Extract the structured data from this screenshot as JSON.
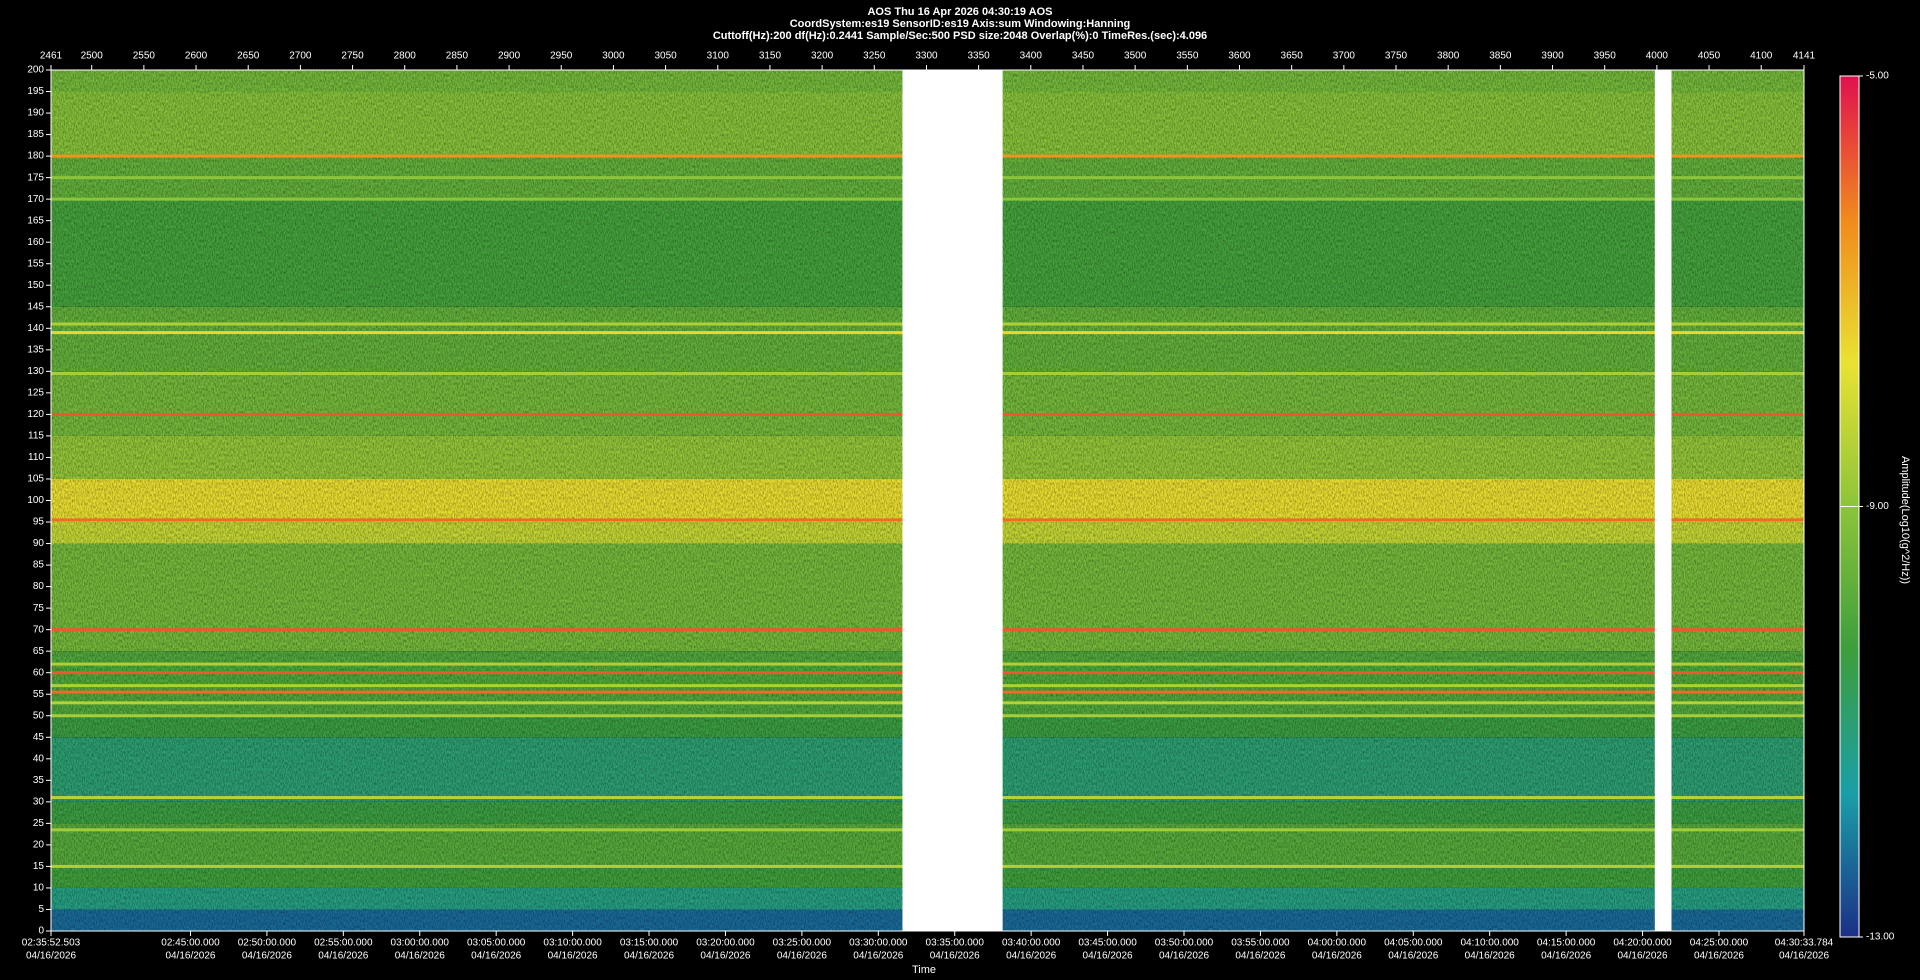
{
  "chart_data": {
    "type": "spectrogram",
    "title": "AOS  Thu 16 Apr 2026 04:30:19  AOS",
    "subtitle": "CoordSystem:es19   SensorID:es19   Axis:sum   Windowing:Hanning",
    "settings_line": "Cuttoff(Hz):200      df(Hz):0.2441      Sample/Sec:500      PSD size:2048      Overlap(%):0      TimeRes.(sec):4.096",
    "xlabel": "Time",
    "colorbar_label": "Amplitude(Log10(g^2/Hz))",
    "xlim": [
      2461,
      4141
    ],
    "xticks": [
      2461,
      2500,
      2550,
      2600,
      2650,
      2700,
      2750,
      2800,
      2850,
      2900,
      2950,
      3000,
      3050,
      3100,
      3150,
      3200,
      3250,
      3300,
      3350,
      3400,
      3450,
      3500,
      3550,
      3600,
      3650,
      3700,
      3750,
      3800,
      3850,
      3900,
      3950,
      4000,
      4050,
      4100,
      4141
    ],
    "x2lim": [
      9352.503,
      16233.784
    ],
    "x2ticks": [
      {
        "value": 9352.503,
        "label": "02:35:52.503"
      },
      {
        "value": 9900,
        "label": "02:45:00.000"
      },
      {
        "value": 10200,
        "label": "02:50:00.000"
      },
      {
        "value": 10500,
        "label": "02:55:00.000"
      },
      {
        "value": 10800,
        "label": "03:00:00.000"
      },
      {
        "value": 11100,
        "label": "03:05:00.000"
      },
      {
        "value": 11400,
        "label": "03:10:00.000"
      },
      {
        "value": 11700,
        "label": "03:15:00.000"
      },
      {
        "value": 12000,
        "label": "03:20:00.000"
      },
      {
        "value": 12300,
        "label": "03:25:00.000"
      },
      {
        "value": 12600,
        "label": "03:30:00.000"
      },
      {
        "value": 12900,
        "label": "03:35:00.000"
      },
      {
        "value": 13200,
        "label": "03:40:00.000"
      },
      {
        "value": 13500,
        "label": "03:45:00.000"
      },
      {
        "value": 13800,
        "label": "03:50:00.000"
      },
      {
        "value": 14100,
        "label": "03:55:00.000"
      },
      {
        "value": 14400,
        "label": "04:00:00.000"
      },
      {
        "value": 14700,
        "label": "04:05:00.000"
      },
      {
        "value": 15000,
        "label": "04:10:00.000"
      },
      {
        "value": 15300,
        "label": "04:15:00.000"
      },
      {
        "value": 15600,
        "label": "04:20:00.000"
      },
      {
        "value": 15900,
        "label": "04:25:00.000"
      },
      {
        "value": 16233.784,
        "label": "04:30:33.784"
      }
    ],
    "x2tick_dates": [
      "04/16/2026",
      "04/16/2026",
      "04/16/2026",
      "04/16/2026",
      "04/16/2026",
      "04/16/2026",
      "04/16/2026",
      "04/16/2026",
      "04/16/2026",
      "04/16/2026",
      "04/16/2026",
      "04/16/2026",
      "04/16/2026",
      "04/16/2026",
      "04/16/2026",
      "04/16/2026",
      "04/16/2026",
      "04/16/2026",
      "04/16/2026",
      "04/16/2026",
      "04/16/2026",
      "04/16/2026",
      "04/16/2026"
    ],
    "ylim": [
      0,
      200
    ],
    "yticks": [
      0,
      5,
      10,
      15,
      20,
      25,
      30,
      35,
      40,
      45,
      50,
      55,
      60,
      65,
      70,
      75,
      80,
      85,
      90,
      95,
      100,
      105,
      110,
      115,
      120,
      125,
      130,
      135,
      140,
      145,
      150,
      155,
      160,
      165,
      170,
      175,
      180,
      185,
      190,
      195,
      200
    ],
    "clim": [
      -13,
      -5
    ],
    "cticks": [
      {
        "value": -5,
        "label": "-5.00"
      },
      {
        "value": -9,
        "label": "-9.00"
      },
      {
        "value": -13,
        "label": "-13.00"
      }
    ],
    "colormap": [
      "#1b2f86",
      "#1a9fa8",
      "#3d9e3c",
      "#8cc43a",
      "#e9e232",
      "#f08a1c",
      "#e0104f"
    ],
    "band_edges": [
      0,
      5,
      10,
      15,
      25,
      30,
      45,
      50,
      65,
      90,
      95,
      105,
      115,
      130,
      145,
      170,
      180,
      195,
      200
    ],
    "band_values": [
      -12.3,
      -11.2,
      -10.3,
      -9.9,
      -10.4,
      -11.0,
      -10.4,
      -10.0,
      -9.4,
      -8.2,
      -7.6,
      -8.9,
      -9.4,
      -9.7,
      -10.2,
      -9.7,
      -9.1,
      -9.4
    ],
    "line_freqs": [
      180,
      175,
      170,
      141,
      139,
      129.5,
      120,
      95.5,
      70,
      62,
      60,
      57,
      55.5,
      53,
      50,
      31,
      23.5,
      15
    ],
    "line_values": [
      -6.5,
      -9.0,
      -9.0,
      -8.5,
      -7.5,
      -8.6,
      -5.8,
      -6.0,
      -5.8,
      -8.5,
      -5.8,
      -8.5,
      -6.0,
      -8.4,
      -8.6,
      -8.4,
      -8.7,
      -8.5
    ],
    "gaps": [
      [
        3277,
        3373
      ],
      [
        3998,
        4014
      ]
    ]
  }
}
